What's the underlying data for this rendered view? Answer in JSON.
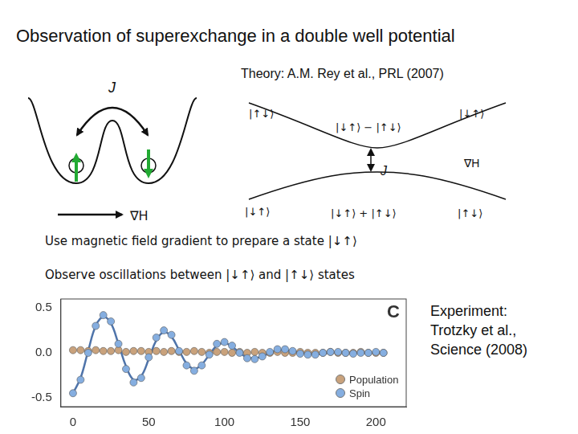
{
  "title": "Observation of superexchange in a double well potential",
  "theory": "Theory: A.M. Rey et al., PRL (2007)",
  "double_well": {
    "tunneling_label": "J",
    "gradient_label": "∇H"
  },
  "level_diagram": {
    "upper": [
      "|↑↓⟩",
      "|↓↑⟩ − |↑↓⟩",
      "|↓↑⟩"
    ],
    "lower": [
      "|↓↑⟩",
      "|↓↑⟩ + |↑↓⟩",
      "|↑↓⟩"
    ],
    "gap_label": "J",
    "axis_label": "∇H"
  },
  "prepare_text": "Use magnetic field gradient to prepare a state |↓↑⟩",
  "observe_text": "Observe oscillations between |↓↑⟩ and |↑↓⟩ states",
  "experiment": [
    "Experiment:",
    "Trotzky et al.,",
    "Science (2008)"
  ],
  "chart_data": {
    "type": "scatter",
    "title": "C",
    "x": [
      0,
      5,
      10,
      15,
      20,
      25,
      30,
      35,
      40,
      45,
      50,
      55,
      60,
      65,
      70,
      75,
      80,
      85,
      90,
      95,
      100,
      105,
      110,
      115,
      120,
      125,
      130,
      135,
      140,
      145,
      150,
      155,
      160,
      165,
      170,
      175,
      180,
      185,
      190,
      195,
      200,
      205
    ],
    "series": [
      {
        "name": "Population",
        "color": "#c9a27c",
        "marker": "circle",
        "values": [
          0.03,
          0.03,
          0.02,
          0.03,
          0.02,
          0.02,
          0.03,
          0.01,
          0.02,
          0.02,
          0.01,
          0.02,
          0.01,
          0.02,
          0.01,
          0.01,
          0.02,
          0.01,
          0.0,
          0.01,
          0.01,
          0.0,
          0.01,
          0.0,
          0.01,
          0.0,
          0.0,
          0.01,
          0.0,
          0.0,
          0.01,
          0.0,
          0.0,
          0.0,
          0.01,
          0.0,
          0.0,
          0.0,
          0.01,
          0.0,
          0.0,
          0.0
        ]
      },
      {
        "name": "Spin",
        "color": "#85aee0",
        "marker": "circle",
        "values": [
          -0.45,
          -0.3,
          0.0,
          0.3,
          0.42,
          0.35,
          0.1,
          -0.18,
          -0.33,
          -0.28,
          -0.05,
          0.17,
          0.25,
          0.2,
          0.02,
          -0.14,
          -0.2,
          -0.14,
          -0.02,
          0.1,
          0.12,
          0.08,
          0.0,
          -0.06,
          -0.07,
          -0.04,
          0.01,
          0.04,
          0.04,
          0.02,
          -0.01,
          -0.02,
          -0.02,
          0.0,
          0.01,
          0.01,
          0.0,
          -0.01,
          0.0,
          0.0,
          0.01,
          0.0
        ]
      },
      {
        "type": "line",
        "color": "#4f74aa",
        "line_style": "solid",
        "values": [
          -0.45,
          -0.28,
          0.02,
          0.3,
          0.4,
          0.33,
          0.1,
          -0.15,
          -0.3,
          -0.26,
          -0.07,
          0.14,
          0.23,
          0.18,
          0.03,
          -0.12,
          -0.18,
          -0.13,
          -0.02,
          0.08,
          0.11,
          0.07,
          0.0,
          -0.05,
          -0.06,
          -0.04,
          0.0,
          0.03,
          0.03,
          0.02,
          0.0,
          -0.01,
          -0.02,
          -0.01,
          0.0,
          0.01,
          0.0,
          0.0,
          0.0,
          0.0,
          0.0,
          0.0
        ]
      }
    ],
    "xlim": [
      -8,
      220
    ],
    "xticks": [
      0,
      50,
      100,
      150,
      200
    ],
    "ylim": [
      -0.6,
      0.6
    ],
    "yticks": [
      -0.5,
      {
        "value": 0,
        "label": "0.0"
      },
      0.5
    ],
    "grid": false,
    "legend": "lower right"
  }
}
